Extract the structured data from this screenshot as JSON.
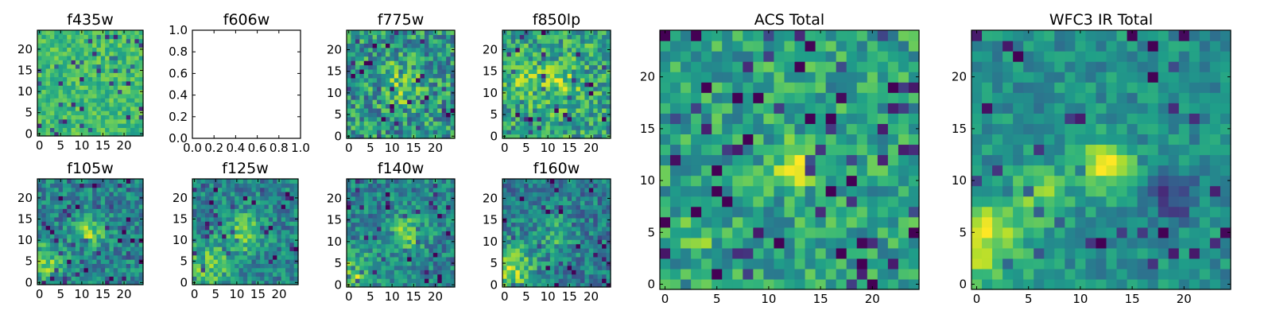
{
  "figure": {
    "colormap": "viridis",
    "colors": {
      "low": "#440154",
      "mid": "#21918c",
      "high": "#fde725",
      "frame": "#000000",
      "background": "#ffffff"
    }
  },
  "chart_data": [
    {
      "type": "heatmap",
      "title": "f435w",
      "xlim": [
        -0.5,
        24.5
      ],
      "ylim": [
        -0.5,
        24.5
      ],
      "xticks": [
        0,
        5,
        10,
        15,
        20
      ],
      "yticks": [
        0,
        5,
        10,
        15,
        20
      ],
      "xticklabels": [
        "0",
        "5",
        "10",
        "15",
        "20"
      ],
      "yticklabels": [
        "0",
        "5",
        "10",
        "15",
        "20"
      ],
      "grid_shape": [
        25,
        25
      ],
      "pattern": "noisy, mostly mid-to-high intensity, no clear structure"
    },
    {
      "type": "empty",
      "title": "f606w",
      "xlim": [
        0.0,
        1.0
      ],
      "ylim": [
        0.0,
        1.0
      ],
      "xticks": [
        0.0,
        0.2,
        0.4,
        0.6,
        0.8,
        1.0
      ],
      "yticks": [
        0.0,
        0.2,
        0.4,
        0.6,
        0.8,
        1.0
      ],
      "xticklabels": [
        "0.0",
        "0.2",
        "0.4",
        "0.6",
        "0.8",
        "1.0"
      ],
      "yticklabels": [
        "0.0",
        "0.2",
        "0.4",
        "0.6",
        "0.8",
        "1.0"
      ]
    },
    {
      "type": "heatmap",
      "title": "f775w",
      "xlim": [
        -0.5,
        24.5
      ],
      "ylim": [
        -0.5,
        24.5
      ],
      "xticks": [
        0,
        5,
        10,
        15,
        20
      ],
      "yticks": [
        0,
        5,
        10,
        15,
        20
      ],
      "xticklabels": [
        "0",
        "5",
        "10",
        "15",
        "20"
      ],
      "yticklabels": [
        "0",
        "5",
        "10",
        "15",
        "20"
      ],
      "grid_shape": [
        25,
        25
      ],
      "pattern": "noisy, slight brightening near center"
    },
    {
      "type": "heatmap",
      "title": "f850lp",
      "xlim": [
        -0.5,
        24.5
      ],
      "ylim": [
        -0.5,
        24.5
      ],
      "xticks": [
        0,
        5,
        10,
        15,
        20
      ],
      "yticks": [
        0,
        5,
        10,
        15,
        20
      ],
      "xticklabels": [
        "0",
        "5",
        "10",
        "15",
        "20"
      ],
      "yticklabels": [
        "0",
        "5",
        "10",
        "15",
        "20"
      ],
      "grid_shape": [
        25,
        25
      ],
      "pattern": "noisy, brighter patches near center and left"
    },
    {
      "type": "heatmap",
      "title": "f105w",
      "xlim": [
        -0.5,
        24.5
      ],
      "ylim": [
        -0.5,
        24.5
      ],
      "xticks": [
        0,
        5,
        10,
        15,
        20
      ],
      "yticks": [
        0,
        5,
        10,
        15,
        20
      ],
      "xticklabels": [
        "0",
        "5",
        "10",
        "15",
        "20"
      ],
      "yticklabels": [
        "0",
        "5",
        "10",
        "15",
        "20"
      ],
      "grid_shape": [
        25,
        25
      ],
      "pattern": "bright source near center, bright region lower-left"
    },
    {
      "type": "heatmap",
      "title": "f125w",
      "xlim": [
        -0.5,
        24.5
      ],
      "ylim": [
        -0.5,
        24.5
      ],
      "xticks": [
        0,
        5,
        10,
        15,
        20
      ],
      "yticks": [
        0,
        5,
        10,
        15,
        20
      ],
      "xticklabels": [
        "0",
        "5",
        "10",
        "15",
        "20"
      ],
      "yticklabels": [
        "0",
        "5",
        "10",
        "15",
        "20"
      ],
      "grid_shape": [
        25,
        25
      ],
      "pattern": "bright source near center, bright region lower-left"
    },
    {
      "type": "heatmap",
      "title": "f140w",
      "xlim": [
        -0.5,
        24.5
      ],
      "ylim": [
        -0.5,
        24.5
      ],
      "xticks": [
        0,
        5,
        10,
        15,
        20
      ],
      "yticks": [
        0,
        5,
        10,
        15,
        20
      ],
      "xticklabels": [
        "0",
        "5",
        "10",
        "15",
        "20"
      ],
      "yticklabels": [
        "0",
        "5",
        "10",
        "15",
        "20"
      ],
      "grid_shape": [
        25,
        25
      ],
      "pattern": "bright source near center, bright region lower-left"
    },
    {
      "type": "heatmap",
      "title": "f160w",
      "xlim": [
        -0.5,
        24.5
      ],
      "ylim": [
        -0.5,
        24.5
      ],
      "xticks": [
        0,
        5,
        10,
        15,
        20
      ],
      "yticks": [
        0,
        5,
        10,
        15,
        20
      ],
      "xticklabels": [
        "0",
        "5",
        "10",
        "15",
        "20"
      ],
      "yticklabels": [
        "0",
        "5",
        "10",
        "15",
        "20"
      ],
      "grid_shape": [
        25,
        25
      ],
      "pattern": "bright lower-left region, moderate center"
    },
    {
      "type": "heatmap",
      "title": "ACS Total",
      "xlim": [
        -0.5,
        24.5
      ],
      "ylim": [
        -0.5,
        24.5
      ],
      "xticks": [
        0,
        5,
        10,
        15,
        20
      ],
      "yticks": [
        0,
        5,
        10,
        15,
        20
      ],
      "xticklabels": [
        "0",
        "5",
        "10",
        "15",
        "20"
      ],
      "yticklabels": [
        "0",
        "5",
        "10",
        "15",
        "20"
      ],
      "grid_shape": [
        25,
        25
      ],
      "pattern": "bright source at about (12, 12), scattered dark pixels"
    },
    {
      "type": "heatmap",
      "title": "WFC3 IR Total",
      "xlim": [
        -0.5,
        24.5
      ],
      "ylim": [
        -0.5,
        24.5
      ],
      "xticks": [
        0,
        5,
        10,
        15,
        20
      ],
      "yticks": [
        0,
        5,
        10,
        15,
        20
      ],
      "xticklabels": [
        "0",
        "5",
        "10",
        "15",
        "20"
      ],
      "yticklabels": [
        "0",
        "5",
        "10",
        "15",
        "20"
      ],
      "grid_shape": [
        25,
        25
      ],
      "pattern": "bright source at about (12, 12), bright lower-left corner, dark patch near (19, 9)"
    }
  ]
}
